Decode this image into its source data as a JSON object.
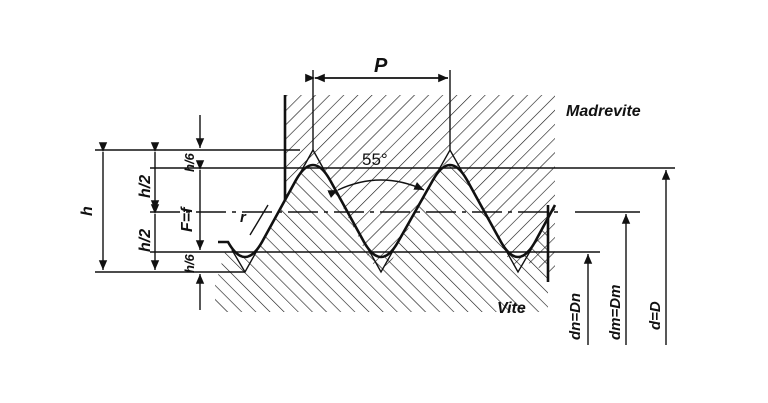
{
  "labels": {
    "pitch": "P",
    "nut": "Madrevite",
    "screw": "Vite",
    "angle": "55°",
    "height": "h",
    "half_height_top": "h/2",
    "half_height_bottom": "h/2",
    "sixth_top": "h/6",
    "sixth_bottom": "h/6",
    "thread_depth": "F=f",
    "radius": "r",
    "root_diameter": "dn=Dn",
    "pitch_diameter": "dm=Dm",
    "major_diameter": "d=D"
  },
  "colors": {
    "ink": "#111111",
    "background": "#ffffff"
  }
}
